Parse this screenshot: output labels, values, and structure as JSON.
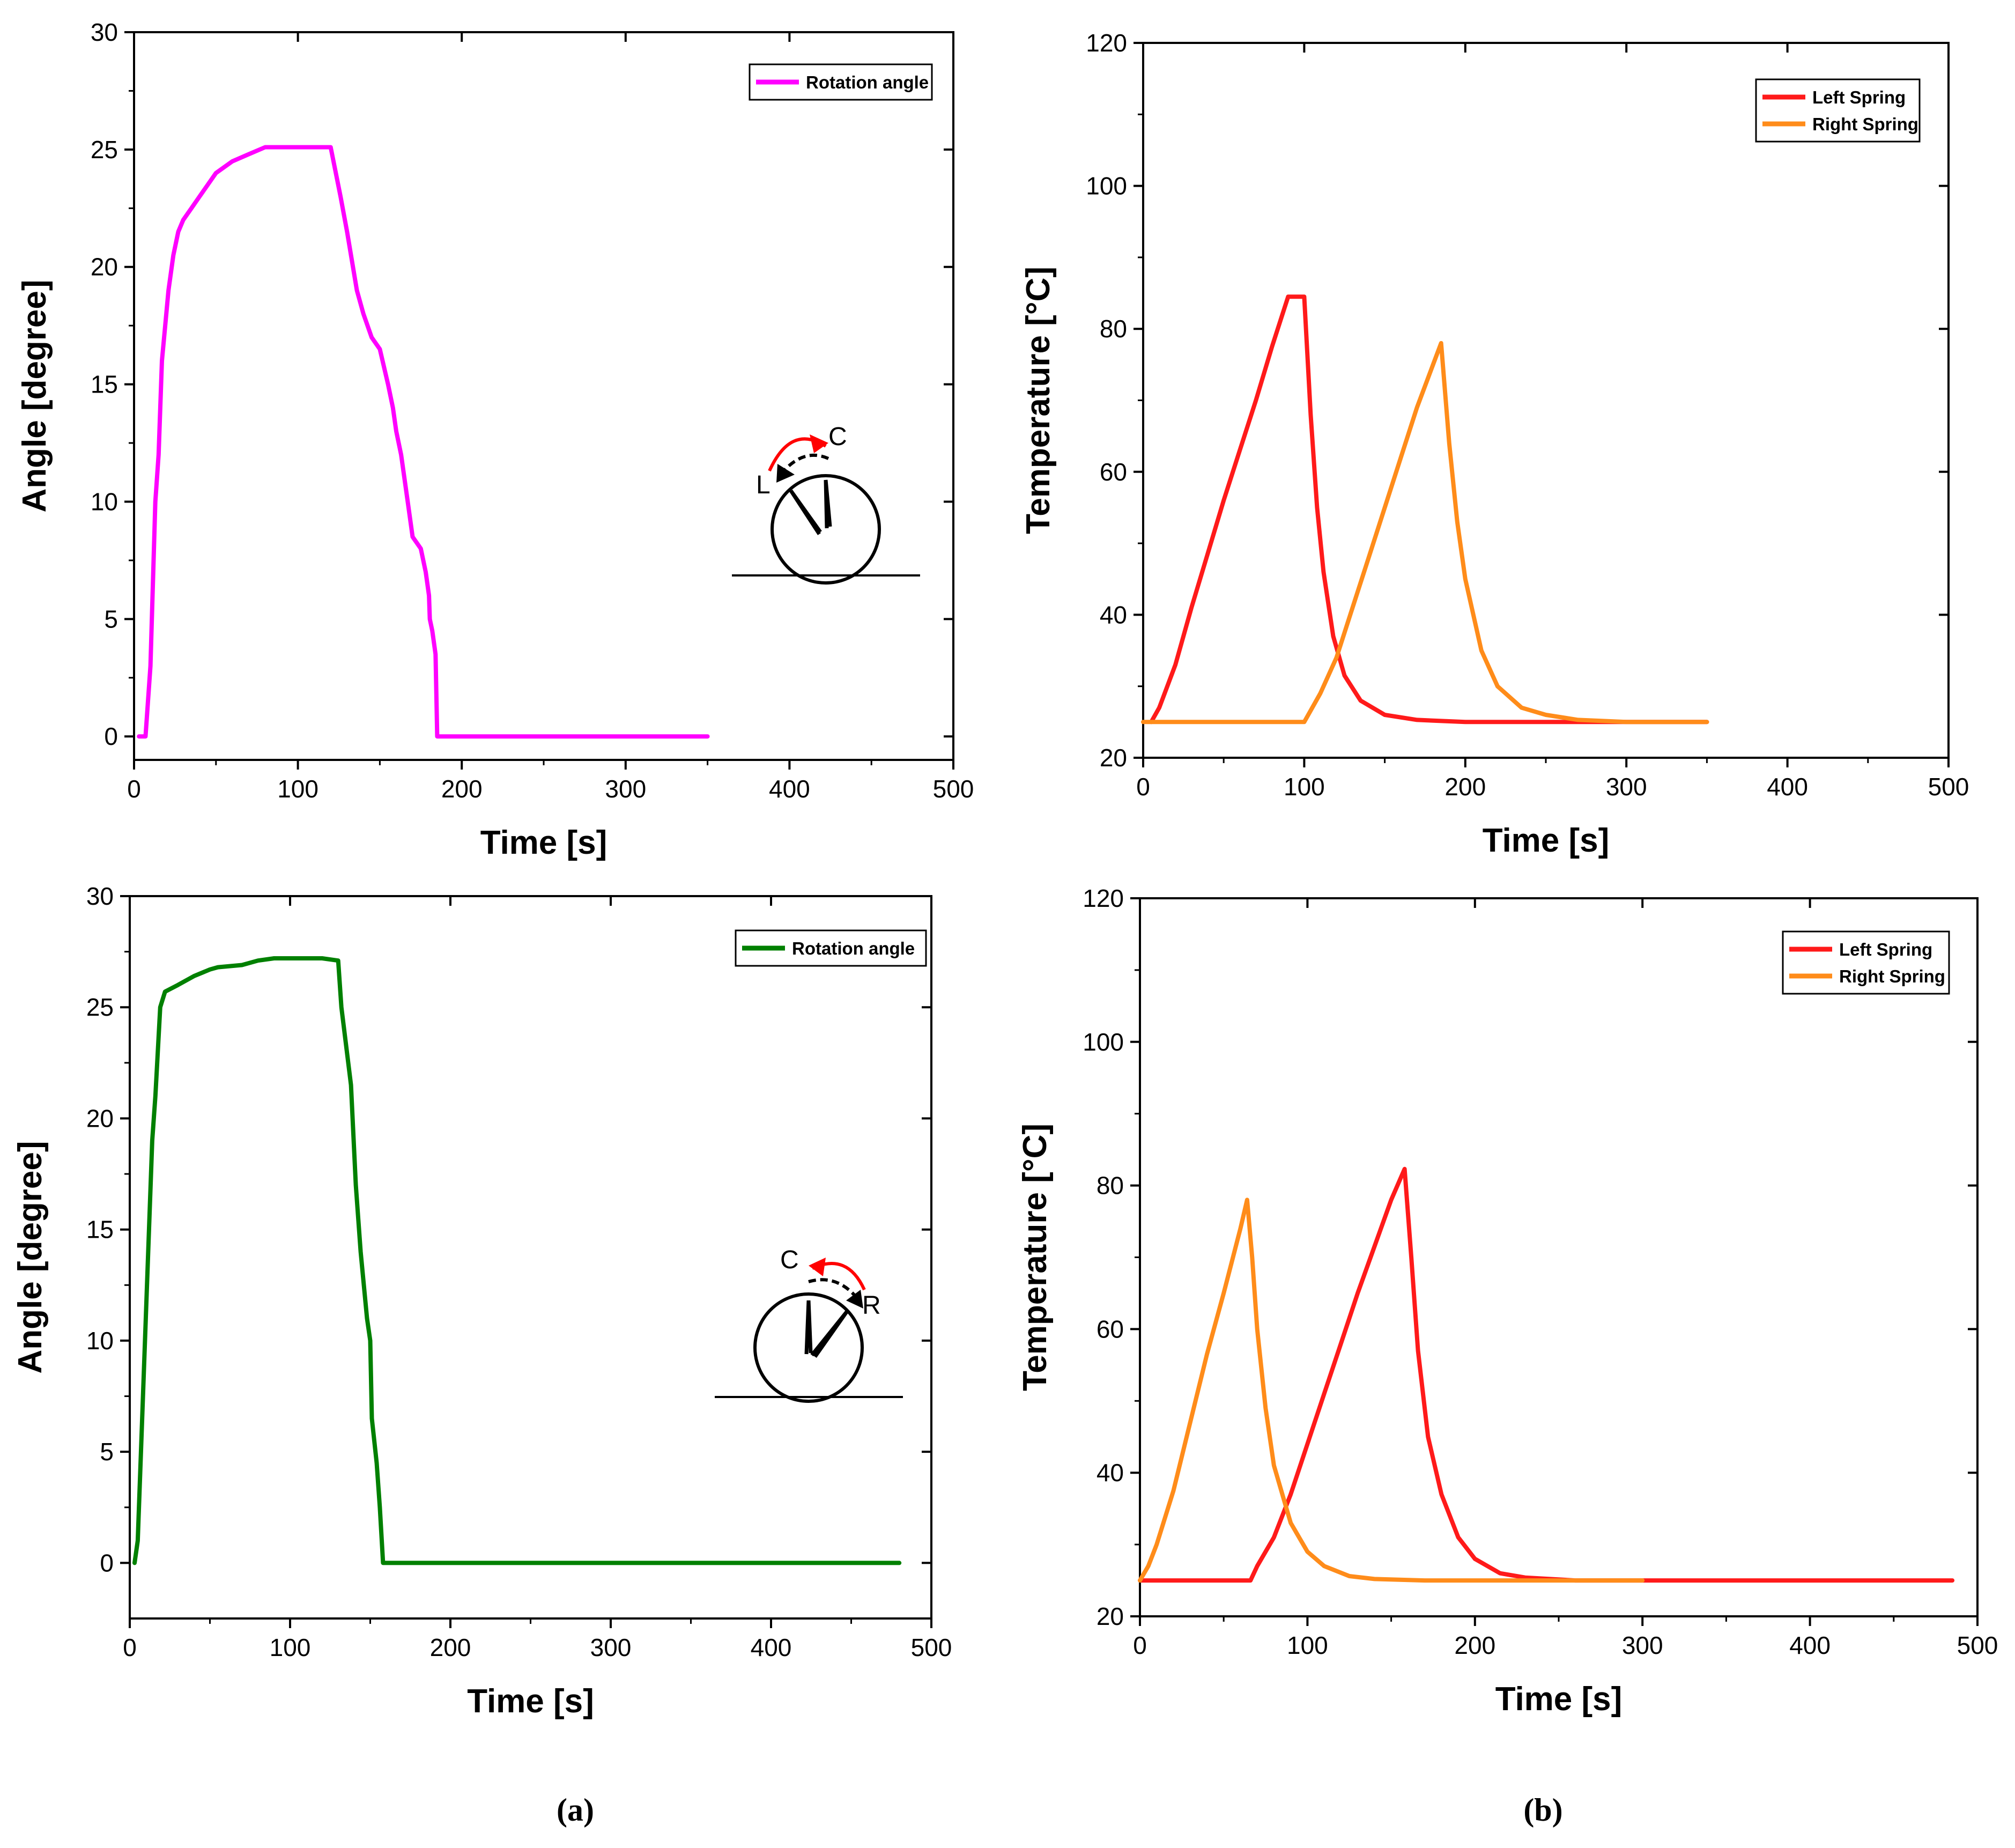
{
  "figure": {
    "caption_a": "(a)",
    "caption_b": "(b)"
  },
  "chart_data": [
    {
      "id": "a-top",
      "type": "line",
      "xlabel": "Time [s]",
      "ylabel": "Angle [degree]",
      "xlim": [
        0,
        500
      ],
      "ylim": [
        -1,
        30
      ],
      "xticks": [
        0,
        100,
        200,
        300,
        400,
        500
      ],
      "yticks": [
        0,
        5,
        10,
        15,
        20,
        25,
        30
      ],
      "legend": "top-right",
      "inset": {
        "labels": [
          "C",
          "L"
        ]
      },
      "series": [
        {
          "name": "Rotation angle",
          "color": "#ff00ff",
          "x": [
            3,
            7,
            10,
            13,
            15,
            17,
            19,
            21,
            24,
            27,
            30,
            35,
            40,
            45,
            50,
            60,
            70,
            80,
            90,
            100,
            110,
            120,
            126,
            130,
            136,
            140,
            145,
            150,
            155,
            158,
            160,
            163,
            167,
            170,
            175,
            178,
            180,
            180.5,
            182,
            184,
            185,
            186,
            188,
            200,
            250,
            300,
            350
          ],
          "y": [
            0,
            0,
            3,
            10,
            12,
            16,
            17.5,
            19,
            20.5,
            21.5,
            22,
            22.5,
            23,
            23.5,
            24,
            24.5,
            24.8,
            25.1,
            25.1,
            25.1,
            25.1,
            25.1,
            23,
            21.5,
            19,
            18,
            17,
            16.5,
            15,
            14,
            13,
            12,
            10,
            8.5,
            8,
            7,
            6,
            5,
            4.5,
            3.5,
            0,
            0,
            0,
            0,
            0,
            0,
            0
          ]
        }
      ]
    },
    {
      "id": "b-top",
      "type": "line",
      "xlabel": "Time [s]",
      "ylabel": "Temperature [°C]",
      "xlim": [
        0,
        500
      ],
      "ylim": [
        20,
        120
      ],
      "xticks": [
        0,
        100,
        200,
        300,
        400,
        500
      ],
      "yticks": [
        20,
        40,
        60,
        80,
        100,
        120
      ],
      "legend": "top-right",
      "series": [
        {
          "name": "Left Spring",
          "color": "#ff1a1a",
          "x": [
            5,
            10,
            20,
            30,
            40,
            50,
            60,
            70,
            80,
            90,
            100,
            104,
            108,
            112,
            118,
            125,
            135,
            150,
            170,
            200,
            250,
            300,
            350
          ],
          "y": [
            25,
            27,
            33,
            41,
            48.5,
            56,
            63,
            70,
            77.5,
            84.5,
            84.5,
            68,
            55,
            46,
            37,
            31.5,
            28,
            26,
            25.3,
            25,
            25,
            25,
            25
          ],
          "peak": 84.5
        },
        {
          "name": "Right Spring",
          "color": "#ff8c1a",
          "x": [
            0,
            50,
            100,
            110,
            120,
            130,
            140,
            150,
            160,
            170,
            180,
            185,
            190,
            195,
            200,
            210,
            220,
            235,
            250,
            270,
            300,
            350
          ],
          "y": [
            25,
            25,
            25,
            29,
            34,
            41,
            48,
            55,
            62,
            69,
            75,
            78,
            64,
            53,
            45,
            35,
            30,
            27,
            26,
            25.3,
            25,
            25
          ],
          "peak": 78
        }
      ]
    },
    {
      "id": "a-bottom",
      "type": "line",
      "xlabel": "Time [s]",
      "ylabel": "Angle [degree]",
      "xlim": [
        0,
        500
      ],
      "ylim": [
        -2.5,
        30
      ],
      "xticks": [
        0,
        100,
        200,
        300,
        400,
        500
      ],
      "yticks": [
        0,
        5,
        10,
        15,
        20,
        25,
        30
      ],
      "legend": "top-right",
      "inset": {
        "labels": [
          "C",
          "R"
        ]
      },
      "series": [
        {
          "name": "Rotation angle",
          "color": "#008000",
          "x": [
            3,
            5,
            8,
            11,
            14,
            16,
            19,
            22,
            30,
            40,
            50,
            55,
            70,
            80,
            90,
            100,
            110,
            120,
            130,
            132,
            138,
            141,
            144,
            148,
            150,
            151,
            154,
            156,
            158,
            160,
            200,
            300,
            400,
            480
          ],
          "y": [
            0,
            1,
            7,
            13,
            19,
            21,
            25,
            25.7,
            26,
            26.4,
            26.7,
            26.8,
            26.9,
            27.1,
            27.2,
            27.2,
            27.2,
            27.2,
            27.1,
            25,
            21.5,
            17,
            14,
            11,
            10,
            6.5,
            4.5,
            2.5,
            0,
            0,
            0,
            0,
            0,
            0
          ]
        }
      ]
    },
    {
      "id": "b-bottom",
      "type": "line",
      "xlabel": "Time [s]",
      "ylabel": "Temperature [°C]",
      "xlim": [
        0,
        500
      ],
      "ylim": [
        20,
        120
      ],
      "xticks": [
        0,
        100,
        200,
        300,
        400,
        500
      ],
      "yticks": [
        20,
        40,
        60,
        80,
        100,
        120
      ],
      "legend": "top-right",
      "series": [
        {
          "name": "Left Spring",
          "color": "#ff1a1a",
          "x": [
            0,
            66,
            70,
            80,
            90,
            100,
            110,
            120,
            130,
            140,
            150,
            158,
            162,
            166,
            172,
            180,
            190,
            200,
            215,
            230,
            260,
            300,
            400,
            485
          ],
          "y": [
            25,
            25,
            27,
            31,
            37,
            44,
            51,
            58,
            65,
            71.5,
            78,
            82.3,
            70,
            57,
            45,
            37,
            31,
            28,
            26,
            25.4,
            25,
            25,
            25,
            25
          ],
          "peak": 82.3
        },
        {
          "name": "Right Spring",
          "color": "#ff8c1a",
          "x": [
            0,
            5,
            10,
            20,
            30,
            40,
            50,
            60,
            64,
            67,
            70,
            75,
            80,
            90,
            100,
            110,
            125,
            140,
            170,
            200,
            250,
            300
          ],
          "y": [
            25,
            27,
            30,
            37.5,
            47,
            56.5,
            65,
            74,
            78,
            70,
            60,
            49,
            41,
            33,
            29,
            27,
            25.6,
            25.2,
            25,
            25,
            25,
            25
          ],
          "peak": 78
        }
      ]
    }
  ]
}
